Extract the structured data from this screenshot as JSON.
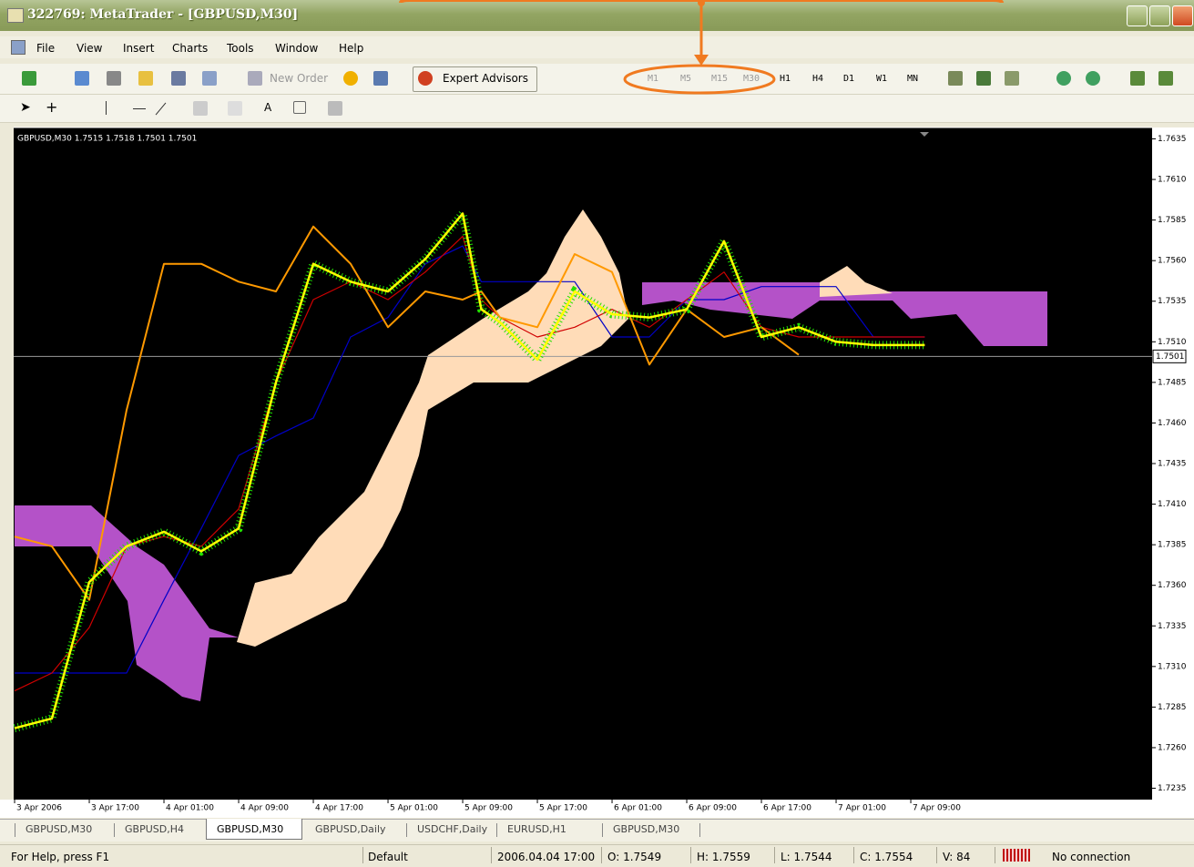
{
  "window": {
    "title": "322769: MetaTrader - [GBPUSD,M30]"
  },
  "menu": [
    "File",
    "View",
    "Insert",
    "Charts",
    "Tools",
    "Window",
    "Help"
  ],
  "toolbar": {
    "new_order": "New Order",
    "expert_advisors": "Expert Advisors",
    "timeframes": [
      "M1",
      "M5",
      "M15",
      "M30",
      "H1",
      "H4",
      "D1",
      "W1",
      "MN"
    ]
  },
  "chart_data": {
    "type": "line",
    "info": "GBPUSD,M30  1.7515 1.7518 1.7501 1.7501",
    "x": [
      0,
      8,
      16,
      24,
      32,
      40,
      48,
      56,
      64,
      72,
      80,
      88,
      96,
      100,
      104,
      112,
      120,
      128,
      136,
      144,
      152,
      160,
      168,
      176,
      184,
      195
    ],
    "xlim": [
      -0.2,
      243.7
    ],
    "xticks": [
      {
        "value": 0,
        "label": "3 Apr 2006"
      },
      {
        "value": 16,
        "label": "3 Apr 17:00"
      },
      {
        "value": 32,
        "label": "4 Apr 01:00"
      },
      {
        "value": 48,
        "label": "4 Apr 09:00"
      },
      {
        "value": 64,
        "label": "4 Apr 17:00"
      },
      {
        "value": 80,
        "label": "5 Apr 01:00"
      },
      {
        "value": 96,
        "label": "5 Apr 09:00"
      },
      {
        "value": 112,
        "label": "5 Apr 17:00"
      },
      {
        "value": 128,
        "label": "6 Apr 01:00"
      },
      {
        "value": 144,
        "label": "6 Apr 09:00"
      },
      {
        "value": 160,
        "label": "6 Apr 17:00"
      },
      {
        "value": 176,
        "label": "7 Apr 01:00"
      },
      {
        "value": 192,
        "label": "7 Apr 09:00"
      }
    ],
    "ylim": [
      1.7228,
      1.7642
    ],
    "yticks": [
      1.7635,
      {
        "value": 1.761,
        "label": "1.7610"
      },
      1.7585,
      {
        "value": 1.756,
        "label": "1.7560"
      },
      1.7535,
      {
        "value": 1.751,
        "label": "1.7510"
      },
      1.7485,
      {
        "value": 1.746,
        "label": "1.7460"
      },
      1.7435,
      {
        "value": 1.741,
        "label": "1.7410"
      },
      1.7385,
      {
        "value": 1.736,
        "label": "1.7360"
      },
      1.7335,
      {
        "value": 1.731,
        "label": "1.7310"
      },
      1.7285,
      {
        "value": 1.726,
        "label": "1.7260"
      },
      1.7235
    ],
    "current_price": 1.7501,
    "series": [
      {
        "color": "#0000c8",
        "values": [
          1.7306,
          1.7306,
          1.7306,
          1.7306,
          1.7351,
          1.7395,
          1.744,
          1.7452,
          1.7463,
          1.7513,
          1.7525,
          1.7558,
          1.7569,
          1.7547,
          1.7547,
          1.7547,
          1.7547,
          1.7513,
          1.7513,
          1.7536,
          1.7536,
          1.7544,
          1.7544,
          1.7544,
          1.7513,
          1.7513
        ]
      },
      {
        "color": "#d00000",
        "values": [
          1.7295,
          1.7306,
          1.7334,
          1.7384,
          1.739,
          1.7384,
          1.7407,
          1.7485,
          1.7536,
          1.7547,
          1.7536,
          1.7553,
          1.7575,
          1.7536,
          1.7525,
          1.7513,
          1.7519,
          1.753,
          1.7519,
          1.7536,
          1.7553,
          1.7519,
          1.7513,
          1.7513,
          1.7513,
          1.7513
        ]
      },
      {
        "color": "#ff9900",
        "values": [
          1.739,
          1.7384,
          1.7351,
          1.7468,
          1.7558,
          1.7558,
          1.7547,
          1.7541,
          1.7581,
          1.7558,
          1.7519,
          1.7541,
          1.7536,
          1.7541,
          1.7525,
          1.7519,
          1.7564,
          1.7553,
          1.7496,
          1.753,
          1.7513,
          1.7519,
          1.7502,
          null,
          null,
          null
        ]
      },
      {
        "color": "#ffff00",
        "values": [
          1.7272,
          1.7278,
          1.7362,
          1.7384,
          1.7393,
          1.7381,
          1.7395,
          1.7485,
          1.7558,
          1.7547,
          1.7541,
          1.7561,
          1.7589,
          1.753,
          1.7522,
          1.7499,
          1.7541,
          1.7527,
          1.7525,
          1.753,
          1.7572,
          1.7513,
          1.7519,
          1.751,
          1.7508,
          1.7508
        ]
      }
    ]
  },
  "tabs": {
    "items": [
      "GBPUSD,M30",
      "GBPUSD,H4",
      "GBPUSD,M30",
      "GBPUSD,Daily",
      "USDCHF,Daily",
      "EURUSD,H1",
      "GBPUSD,M30"
    ],
    "active": 2
  },
  "status": {
    "help": "For Help, press F1",
    "profile": "Default",
    "time": "2006.04.04 17:00",
    "open": "O: 1.7549",
    "high": "H: 1.7559",
    "low": "L: 1.7544",
    "close": "C: 1.7554",
    "volume": "V: 84",
    "connection": "No connection"
  }
}
